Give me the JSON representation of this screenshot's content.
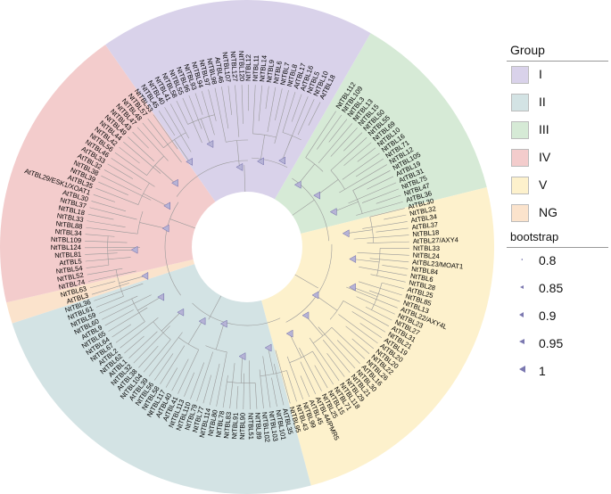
{
  "tree": {
    "sectors": [
      {
        "group": "III",
        "start": -60,
        "end": -14
      },
      {
        "group": "V",
        "start": -14,
        "end": 75
      },
      {
        "group": "II",
        "start": 75,
        "end": 162
      },
      {
        "group": "NG",
        "start": 162,
        "end": 167
      },
      {
        "group": "IV",
        "start": 167,
        "end": 235
      },
      {
        "group": "I",
        "start": 235,
        "end": 300
      }
    ],
    "highlighted_labels": [
      "AtTBL29/ESK1/XOAT1",
      "AtTBL22/AXY4L",
      "AtTBL27/AXY4",
      "AtTBL44/PMR5",
      "AtTBL23/MOAT1",
      "AtTBL46"
    ],
    "labels": [
      "NtTBL112",
      "NtTBL109",
      "NtTBL3",
      "NtTBL13",
      "NtTBL15",
      "NtTBL50",
      "NtTBL55",
      "NtTBL69",
      "NtTBL10",
      "NtTBL16",
      "NtTBL71",
      "NtTBL12",
      "NtTBL105",
      "AtTBL19",
      "AtTBL31",
      "NtTBL75",
      "NtTBL47",
      "AtTBL36",
      "AtTBL30",
      "NtTBL32",
      "AtTBL34",
      "AtTBL37",
      "NtTBL18",
      "AtTBL27/AXY4",
      "NtTBL33",
      "NtTBL24",
      "AtTBL23/MOAT1",
      "NtTBL84",
      "NtTBL6",
      "NtTBL28",
      "AtTBL25",
      "NtTBL85",
      "NtTBL13",
      "AtTBL22/AXY4L",
      "NtTBL23",
      "NtTBL27",
      "AtTBL31",
      "NtTBL21",
      "AtTBL19",
      "AtTBL20",
      "NtTBL20",
      "NtTBL22",
      "NtTBL26",
      "AtTBL16",
      "NtTBL30",
      "NtTBL21",
      "NtTBL29",
      "NtTBL118",
      "NtTBL71",
      "NtTBL15",
      "NtTBL25",
      "AtTBL44/PMR5",
      "AtTBL45",
      "NtTBL99",
      "NtTBL43",
      "NtTBL95",
      "AtTBL35",
      "NtTBL101",
      "NtTBL103",
      "NtTBL102",
      "NtTBL89",
      "NtTBL51",
      "NtTBL90",
      "NtTBL91",
      "NtTBL83",
      "NtTBL78",
      "NtTBL80",
      "NtTBL114",
      "NtTBL77",
      "NtTBL79",
      "NtTBL110",
      "NtTBL113",
      "AtTBL41",
      "AtTBL40",
      "NtTBL117",
      "NtTBL58",
      "NtTBL56",
      "AtTBL39",
      "NtTBL104",
      "AtTBL38",
      "NtTBL32",
      "AtTBL1",
      "NtTBL62",
      "AtTBL2",
      "NtTBL67",
      "NtTBL64",
      "NtTBL65",
      "AtTBL9",
      "NtTBL60",
      "NtTBL59",
      "NtTBL61",
      "NtTBL36",
      "AtTBL3",
      "NtTBL63",
      "NtTBL74",
      "NtTBL52",
      "NtTBL54",
      "AtTBL5",
      "NtTBL81",
      "NtTBL124",
      "NtTBL109",
      "NtTBL34",
      "NtTBL88",
      "NtTBL33",
      "NtTBL18",
      "NtTBL37",
      "AtTBL30",
      "AtTBL29/ESK1/XOAT1",
      "AtTBL35",
      "NtTBL39",
      "NtTBL38",
      "AtTBL32",
      "AtTBL33",
      "NtTBL46",
      "NtTBL56",
      "NtTBL42",
      "NtTBL44",
      "NtTBL49",
      "NtTBL43",
      "NtTBL47",
      "NtTBL48",
      "NtTBL57",
      "NtTBL53",
      "NtTBL45",
      "NtTBL40",
      "NtTBL41",
      "NtTBL58",
      "NtTBL55",
      "NtTBL96",
      "NtTBL93",
      "NtTBL94",
      "NtTBL97",
      "NtTBL98",
      "AtTBL46",
      "NtTBL107",
      "NtTBL127",
      "NtTBL120",
      "NtTBL12",
      "NtTBL11",
      "NtTBL14",
      "NtTBL9",
      "NtTBL6",
      "NtTBL7",
      "NtTBL8",
      "AtTBL17",
      "AtTBL16",
      "NtTBL5",
      "NtTBL10",
      "AtTBL18"
    ]
  },
  "legend": {
    "group_title": "Group",
    "groups": [
      {
        "name": "I",
        "color": "#d9d2ea"
      },
      {
        "name": "II",
        "color": "#d3e3e4"
      },
      {
        "name": "III",
        "color": "#d6ead6"
      },
      {
        "name": "IV",
        "color": "#f3cccc"
      },
      {
        "name": "V",
        "color": "#fdf1cc"
      },
      {
        "name": "NG",
        "color": "#fbe3cc"
      }
    ],
    "bootstrap_title": "bootstrap",
    "bootstrap_values": [
      "0.8",
      "0.85",
      "0.9",
      "0.95",
      "1"
    ]
  }
}
